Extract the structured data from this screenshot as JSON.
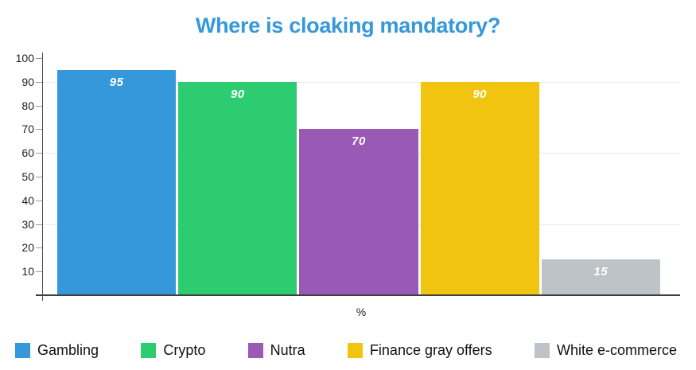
{
  "chart_data": {
    "type": "bar",
    "title": "Where is cloaking mandatory?",
    "title_color": "#3498db",
    "categories": [
      "Gambling",
      "Crypto",
      "Nutra",
      "Finance gray offers",
      "White e-commerce"
    ],
    "values": [
      95,
      90,
      70,
      90,
      15
    ],
    "bar_labels": [
      "95",
      "90",
      "70",
      "90",
      "15"
    ],
    "colors": [
      "#3498db",
      "#2ecc71",
      "#9b59b6",
      "#f1c40f",
      "#bdc3c7"
    ],
    "bar_value_label_color": "#ffffff",
    "xlabel": "%",
    "ylabel": "",
    "ylim": [
      0,
      100
    ],
    "yticks": [
      100,
      90,
      80,
      70,
      60,
      50,
      40,
      30,
      20,
      10
    ],
    "gridlines_at": [
      90,
      60,
      30
    ],
    "grid": "horizontal-partial",
    "legend_position": "bottom"
  }
}
